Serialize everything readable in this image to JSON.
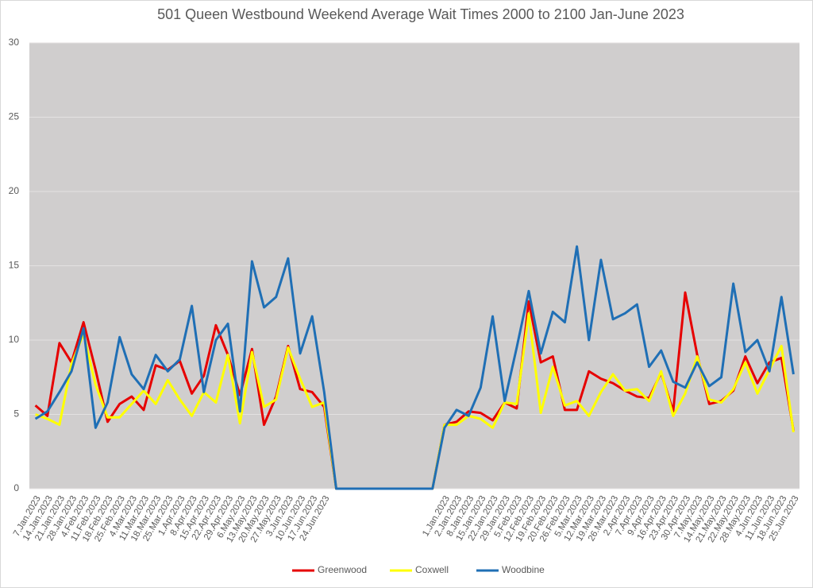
{
  "chart_data": {
    "type": "line",
    "title": "501 Queen Westbound Weekend Average Wait Times 2000 to 2100 Jan-June 2023",
    "categories": [
      "7.Jan.2023",
      "14.Jan.2023",
      "21.Jan.2023",
      "28.Jan.2023",
      "4.Feb.2023",
      "11.Feb.2023",
      "18.Feb.2023",
      "25.Feb.2023",
      "4.Mar.2023",
      "11.Mar.2023",
      "18.Mar.2023",
      "25.Mar.2023",
      "1.Apr.2023",
      "8.Apr.2023",
      "15.Apr.2023",
      "22.Apr.2023",
      "29.Apr.2023",
      "6.May.2023",
      "13.May.2023",
      "20.May.2023",
      "27.May.2023",
      "3.Jun.2023",
      "10.Jun.2023",
      "17.Jun.2023",
      "24.Jun.2023",
      null,
      null,
      null,
      null,
      null,
      null,
      null,
      null,
      null,
      "1.Jan.2023",
      "2.Jan.2023",
      "8.Jan.2023",
      "15.Jan.2023",
      "22.Jan.2023",
      "29.Jan.2023",
      "5.Feb.2023",
      "12.Feb.2023",
      "19.Feb.2023",
      "20.Feb.2023",
      "26.Feb.2023",
      "5.Mar.2023",
      "12.Mar.2023",
      "19.Mar.2023",
      "26.Mar.2023",
      "2.Apr.2023",
      "7.Apr.2023",
      "9.Apr.2023",
      "16.Apr.2023",
      "23.Apr.2023",
      "30.Apr.2023",
      "7.May.2023",
      "14.May.2023",
      "21.May.2023",
      "22.May.2023",
      "28.May.2023",
      "4.Jun.2023",
      "11.Jun.2023",
      "18.Jun.2023",
      "25.Jun.2023"
    ],
    "series": [
      {
        "name": "Greenwood",
        "color": "#e60000",
        "values": [
          5.6,
          4.9,
          9.8,
          8.5,
          11.2,
          8.0,
          4.5,
          5.7,
          6.2,
          5.3,
          8.3,
          8.0,
          8.6,
          6.4,
          7.6,
          11.0,
          9.0,
          6.3,
          9.4,
          4.3,
          6.2,
          9.6,
          6.7,
          6.5,
          5.5,
          0,
          0,
          0,
          0,
          0,
          0,
          0,
          0,
          0,
          4.3,
          4.5,
          5.2,
          5.1,
          4.6,
          5.8,
          5.4,
          12.6,
          8.5,
          8.9,
          5.3,
          5.3,
          7.9,
          7.4,
          7.1,
          6.6,
          6.2,
          6.1,
          7.8,
          5.2,
          13.2,
          9.0,
          5.7,
          5.9,
          6.6,
          8.9,
          7.1,
          8.5,
          8.8,
          3.9
        ]
      },
      {
        "name": "Coxwell",
        "color": "#ffff00",
        "values": [
          5.0,
          4.7,
          4.3,
          8.4,
          10.4,
          7.0,
          4.8,
          4.8,
          5.7,
          6.6,
          5.7,
          7.3,
          6.0,
          4.9,
          6.5,
          5.8,
          9.0,
          4.4,
          9.2,
          5.5,
          6.0,
          9.5,
          7.4,
          5.5,
          5.8,
          0,
          0,
          0,
          0,
          0,
          0,
          0,
          0,
          0,
          4.3,
          4.3,
          4.9,
          4.7,
          4.1,
          5.8,
          5.7,
          11.8,
          5.1,
          8.2,
          5.6,
          5.9,
          4.9,
          6.5,
          7.7,
          6.6,
          6.7,
          5.9,
          7.9,
          4.9,
          6.4,
          8.9,
          6.0,
          5.8,
          6.7,
          8.5,
          6.4,
          8.0,
          9.6,
          3.8
        ]
      },
      {
        "name": "Woodbine",
        "color": "#1f6fb5",
        "values": [
          4.7,
          5.2,
          6.5,
          7.9,
          10.8,
          4.1,
          5.8,
          10.2,
          7.7,
          6.7,
          9.0,
          7.9,
          8.7,
          12.3,
          6.5,
          10.0,
          11.1,
          5.2,
          15.3,
          12.2,
          12.9,
          15.5,
          9.1,
          11.6,
          6.5,
          0,
          0,
          0,
          0,
          0,
          0,
          0,
          0,
          0,
          4.1,
          5.3,
          4.9,
          6.8,
          11.6,
          5.9,
          9.5,
          13.3,
          9.1,
          11.9,
          11.2,
          16.3,
          10.0,
          15.4,
          11.4,
          11.8,
          12.4,
          8.2,
          9.3,
          7.2,
          6.8,
          8.5,
          6.9,
          7.5,
          13.8,
          9.2,
          10.0,
          7.9,
          12.9,
          7.7
        ]
      }
    ],
    "ylim": [
      0,
      30
    ],
    "yticks": [
      0,
      5,
      10,
      15,
      20,
      25,
      30
    ],
    "grid": true,
    "legend": "bottom"
  }
}
